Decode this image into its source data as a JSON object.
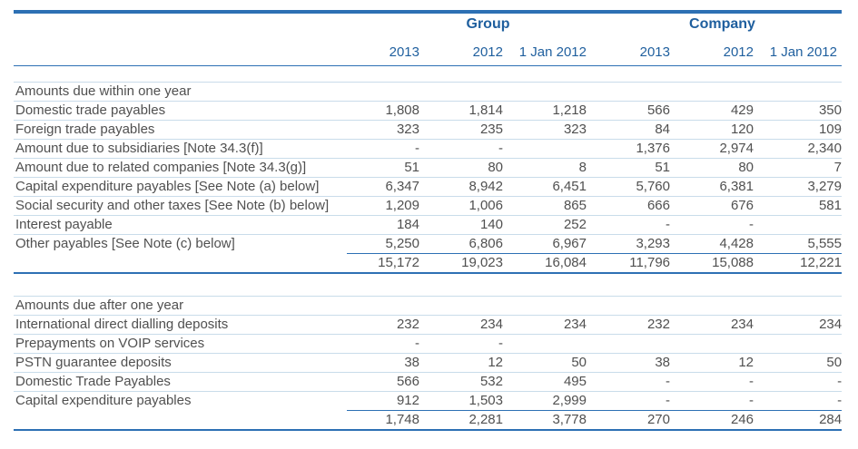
{
  "headers": {
    "group": "Group",
    "company": "Company",
    "columns": [
      "2013",
      "2012",
      "1 Jan 2012",
      "2013",
      "2012",
      "1 Jan 2012"
    ]
  },
  "section1": {
    "title": "Amounts due within one year",
    "rows": [
      {
        "label": "Domestic trade payables",
        "values": [
          "1,808",
          "1,814",
          "1,218",
          "566",
          "429",
          "350"
        ]
      },
      {
        "label": "Foreign trade payables",
        "values": [
          "323",
          "235",
          "323",
          "84",
          "120",
          "109"
        ]
      },
      {
        "label": "Amount due to subsidiaries [Note 34.3(f)]",
        "values": [
          "-",
          "-",
          "",
          "1,376",
          "2,974",
          "2,340"
        ]
      },
      {
        "label": "Amount due to related companies [Note 34.3(g)]",
        "values": [
          "51",
          "80",
          "8",
          "51",
          "80",
          "7"
        ]
      },
      {
        "label": "Capital expenditure payables [See Note (a) below]",
        "values": [
          "6,347",
          "8,942",
          "6,451",
          "5,760",
          "6,381",
          "3,279"
        ]
      },
      {
        "label": "Social security and other taxes [See Note (b) below]",
        "values": [
          "1,209",
          "1,006",
          "865",
          "666",
          "676",
          "581"
        ]
      },
      {
        "label": "Interest payable",
        "values": [
          "184",
          "140",
          "252",
          "-",
          "-",
          ""
        ]
      },
      {
        "label": "Other payables [See Note (c) below]",
        "values": [
          "5,250",
          "6,806",
          "6,967",
          "3,293",
          "4,428",
          "5,555"
        ]
      }
    ],
    "total": [
      "15,172",
      "19,023",
      "16,084",
      "11,796",
      "15,088",
      "12,221"
    ]
  },
  "section2": {
    "title": "Amounts due after one year",
    "rows": [
      {
        "label": "International direct dialling deposits",
        "values": [
          "232",
          "234",
          "234",
          "232",
          "234",
          "234"
        ]
      },
      {
        "label": "Prepayments on VOIP services",
        "values": [
          "-",
          "-",
          "",
          "",
          "",
          ""
        ]
      },
      {
        "label": "PSTN guarantee deposits",
        "values": [
          "38",
          "12",
          "50",
          "38",
          "12",
          "50"
        ]
      },
      {
        "label": "Domestic Trade Payables",
        "values": [
          "566",
          "532",
          "495",
          "-",
          "-",
          "-"
        ]
      },
      {
        "label": "Capital expenditure payables",
        "values": [
          "912",
          "1,503",
          "2,999",
          "-",
          "-",
          "-"
        ]
      }
    ],
    "total": [
      "1,748",
      "2,281",
      "3,778",
      "270",
      "246",
      "284"
    ]
  }
}
